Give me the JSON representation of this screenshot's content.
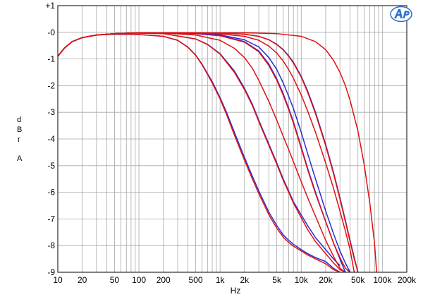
{
  "chart_data": {
    "type": "line",
    "title": "",
    "xlabel": "Hz",
    "ylabel_letters": [
      "d",
      "B",
      "r",
      "A"
    ],
    "x_scale": "log",
    "xlim": [
      10,
      200000
    ],
    "ylim": [
      -9,
      1
    ],
    "grid": true,
    "x_ticks": [
      {
        "value": 10,
        "label": "10"
      },
      {
        "value": 20,
        "label": "20"
      },
      {
        "value": 50,
        "label": "50"
      },
      {
        "value": 100,
        "label": "100"
      },
      {
        "value": 200,
        "label": "200"
      },
      {
        "value": 500,
        "label": "500"
      },
      {
        "value": 1000,
        "label": "1k"
      },
      {
        "value": 2000,
        "label": "2k"
      },
      {
        "value": 5000,
        "label": "5k"
      },
      {
        "value": 10000,
        "label": "10k"
      },
      {
        "value": 20000,
        "label": "20k"
      },
      {
        "value": 50000,
        "label": "50k"
      },
      {
        "value": 100000,
        "label": "100k"
      },
      {
        "value": 200000,
        "label": "200k"
      }
    ],
    "y_ticks": [
      {
        "value": 1,
        "label": "+1"
      },
      {
        "value": 0,
        "label": "-0"
      },
      {
        "value": -1,
        "label": "-1"
      },
      {
        "value": -2,
        "label": "-2"
      },
      {
        "value": -3,
        "label": "-3"
      },
      {
        "value": -4,
        "label": "-4"
      },
      {
        "value": -5,
        "label": "-5"
      },
      {
        "value": -6,
        "label": "-6"
      },
      {
        "value": -7,
        "label": "-7"
      },
      {
        "value": -8,
        "label": "-8"
      },
      {
        "value": -9,
        "label": "-9"
      }
    ],
    "colors": {
      "red": "#e01010",
      "blue": "#2a2ad0"
    },
    "series": [
      {
        "color": "blue",
        "x": [
          10,
          12,
          15,
          20,
          30,
          50,
          100,
          200,
          300,
          400,
          500,
          600,
          700,
          800,
          1000,
          1200,
          1500,
          2000,
          2500,
          3000,
          4000,
          5000,
          6000,
          7000,
          8000,
          10000,
          12000,
          15000,
          20000,
          25000,
          30000
        ],
        "y": [
          -0.9,
          -0.6,
          -0.35,
          -0.2,
          -0.1,
          -0.07,
          -0.08,
          -0.15,
          -0.3,
          -0.55,
          -0.85,
          -1.2,
          -1.55,
          -1.85,
          -2.45,
          -3.0,
          -3.75,
          -4.7,
          -5.4,
          -5.95,
          -6.75,
          -7.25,
          -7.6,
          -7.8,
          -7.95,
          -8.15,
          -8.3,
          -8.45,
          -8.6,
          -8.85,
          -9.0
        ]
      },
      {
        "color": "red",
        "x": [
          10,
          12,
          15,
          20,
          30,
          50,
          100,
          200,
          300,
          400,
          500,
          600,
          700,
          800,
          1000,
          1200,
          1500,
          2000,
          2500,
          3000,
          4000,
          5000,
          6000,
          7000,
          8000,
          10000,
          12000,
          15000,
          20000,
          25000,
          30000
        ],
        "y": [
          -0.9,
          -0.6,
          -0.35,
          -0.2,
          -0.1,
          -0.07,
          -0.08,
          -0.15,
          -0.3,
          -0.56,
          -0.86,
          -1.22,
          -1.58,
          -1.9,
          -2.5,
          -3.08,
          -3.85,
          -4.8,
          -5.5,
          -6.05,
          -6.85,
          -7.35,
          -7.68,
          -7.88,
          -8.02,
          -8.2,
          -8.35,
          -8.5,
          -8.68,
          -8.9,
          -9.0
        ]
      },
      {
        "color": "blue",
        "x": [
          10,
          12,
          15,
          20,
          30,
          50,
          100,
          200,
          500,
          700,
          1000,
          1500,
          2000,
          2500,
          3000,
          4000,
          5000,
          6000,
          7000,
          8000,
          10000,
          12000,
          15000,
          20000,
          25000,
          30000
        ],
        "y": [
          -0.9,
          -0.6,
          -0.35,
          -0.2,
          -0.1,
          -0.05,
          -0.03,
          -0.05,
          -0.25,
          -0.45,
          -0.8,
          -1.45,
          -2.1,
          -2.7,
          -3.3,
          -4.2,
          -4.9,
          -5.5,
          -5.95,
          -6.35,
          -6.85,
          -7.25,
          -7.7,
          -8.15,
          -8.5,
          -8.75
        ]
      },
      {
        "color": "red",
        "x": [
          10,
          12,
          15,
          20,
          30,
          50,
          100,
          200,
          500,
          700,
          1000,
          1500,
          2000,
          2500,
          3000,
          4000,
          5000,
          6000,
          7000,
          8000,
          10000,
          12000,
          15000,
          20000,
          25000,
          30000,
          35000
        ],
        "y": [
          -0.9,
          -0.6,
          -0.35,
          -0.2,
          -0.1,
          -0.05,
          -0.03,
          -0.05,
          -0.25,
          -0.46,
          -0.82,
          -1.5,
          -2.15,
          -2.75,
          -3.35,
          -4.25,
          -4.95,
          -5.55,
          -6.0,
          -6.4,
          -6.95,
          -7.4,
          -7.85,
          -8.3,
          -8.65,
          -8.9,
          -9.0
        ]
      },
      {
        "color": "red",
        "x": [
          10,
          12,
          15,
          20,
          30,
          50,
          100,
          200,
          500,
          1000,
          1500,
          2000,
          2500,
          3000,
          4000,
          5000,
          6000,
          7000,
          8000,
          10000,
          12000,
          15000,
          20000,
          25000,
          30000,
          35000
        ],
        "y": [
          -0.9,
          -0.6,
          -0.35,
          -0.2,
          -0.1,
          -0.05,
          -0.02,
          -0.03,
          -0.1,
          -0.3,
          -0.6,
          -0.95,
          -1.35,
          -1.8,
          -2.6,
          -3.3,
          -3.9,
          -4.4,
          -4.85,
          -5.6,
          -6.2,
          -6.9,
          -7.8,
          -8.4,
          -8.85,
          -9.0
        ]
      },
      {
        "color": "blue",
        "x": [
          10,
          12,
          15,
          20,
          30,
          50,
          100,
          200,
          500,
          1000,
          2000,
          3000,
          4000,
          5000,
          6000,
          7000,
          8000,
          10000,
          12000,
          15000,
          20000,
          25000,
          30000,
          35000
        ],
        "y": [
          -0.9,
          -0.6,
          -0.35,
          -0.2,
          -0.1,
          -0.05,
          -0.02,
          -0.02,
          -0.05,
          -0.12,
          -0.35,
          -0.7,
          -1.2,
          -1.75,
          -2.3,
          -2.85,
          -3.35,
          -4.3,
          -5.1,
          -6.0,
          -7.1,
          -7.9,
          -8.5,
          -9.0
        ]
      },
      {
        "color": "red",
        "x": [
          10,
          12,
          15,
          20,
          30,
          50,
          100,
          200,
          500,
          1000,
          2000,
          3000,
          4000,
          5000,
          6000,
          7000,
          8000,
          10000,
          12000,
          15000,
          20000,
          25000,
          30000,
          35000,
          40000
        ],
        "y": [
          -0.9,
          -0.6,
          -0.35,
          -0.2,
          -0.1,
          -0.05,
          -0.02,
          -0.02,
          -0.05,
          -0.13,
          -0.37,
          -0.73,
          -1.25,
          -1.8,
          -2.36,
          -2.9,
          -3.4,
          -4.35,
          -5.15,
          -6.05,
          -7.1,
          -7.9,
          -8.45,
          -8.85,
          -9.0
        ]
      },
      {
        "color": "blue",
        "x": [
          10,
          12,
          15,
          20,
          30,
          50,
          100,
          200,
          500,
          1000,
          2000,
          3000,
          4000,
          5000,
          6000,
          7000,
          8000,
          10000,
          12000,
          15000,
          20000,
          25000,
          30000,
          35000,
          40000
        ],
        "y": [
          -0.9,
          -0.6,
          -0.35,
          -0.2,
          -0.1,
          -0.05,
          -0.02,
          -0.02,
          -0.04,
          -0.1,
          -0.28,
          -0.55,
          -0.95,
          -1.4,
          -1.9,
          -2.4,
          -2.85,
          -3.75,
          -4.55,
          -5.5,
          -6.7,
          -7.55,
          -8.2,
          -8.65,
          -9.0
        ]
      },
      {
        "color": "red",
        "x": [
          10,
          12,
          15,
          20,
          30,
          50,
          100,
          200,
          500,
          1000,
          2000,
          3000,
          4000,
          5000,
          6000,
          7000,
          8000,
          10000,
          12000,
          15000,
          20000,
          25000,
          30000,
          35000,
          40000,
          45000
        ],
        "y": [
          -0.9,
          -0.6,
          -0.35,
          -0.2,
          -0.1,
          -0.05,
          -0.02,
          -0.02,
          -0.03,
          -0.06,
          -0.15,
          -0.3,
          -0.52,
          -0.78,
          -1.08,
          -1.4,
          -1.72,
          -2.35,
          -2.95,
          -3.75,
          -4.9,
          -5.85,
          -6.7,
          -7.45,
          -8.15,
          -9.0
        ]
      },
      {
        "color": "blue",
        "x": [
          10,
          12,
          15,
          20,
          30,
          50,
          100,
          200,
          500,
          1000,
          2000,
          3000,
          4000,
          5000,
          6000,
          7000,
          8000,
          10000,
          12000,
          15000,
          20000,
          25000,
          30000,
          35000,
          40000,
          45000,
          50000
        ],
        "y": [
          -0.9,
          -0.6,
          -0.35,
          -0.2,
          -0.1,
          -0.05,
          -0.02,
          -0.02,
          -0.02,
          -0.03,
          -0.07,
          -0.15,
          -0.28,
          -0.45,
          -0.65,
          -0.88,
          -1.12,
          -1.65,
          -2.2,
          -3.0,
          -4.2,
          -5.25,
          -6.2,
          -7.05,
          -7.8,
          -8.45,
          -9.0
        ]
      },
      {
        "color": "red",
        "x": [
          10,
          12,
          15,
          20,
          30,
          50,
          100,
          200,
          500,
          1000,
          2000,
          3000,
          4000,
          5000,
          6000,
          7000,
          8000,
          10000,
          12000,
          15000,
          20000,
          25000,
          30000,
          35000,
          40000,
          45000,
          50000
        ],
        "y": [
          -0.9,
          -0.6,
          -0.35,
          -0.2,
          -0.1,
          -0.05,
          -0.02,
          -0.02,
          -0.02,
          -0.03,
          -0.07,
          -0.15,
          -0.28,
          -0.46,
          -0.66,
          -0.9,
          -1.15,
          -1.68,
          -2.25,
          -3.05,
          -4.25,
          -5.3,
          -6.25,
          -7.1,
          -7.85,
          -8.5,
          -9.0
        ]
      },
      {
        "color": "red",
        "x": [
          10,
          12,
          15,
          20,
          30,
          50,
          100,
          200,
          500,
          1000,
          2000,
          5000,
          10000,
          15000,
          20000,
          25000,
          30000,
          35000,
          40000,
          50000,
          60000,
          70000,
          80000,
          85000
        ],
        "y": [
          -0.9,
          -0.6,
          -0.35,
          -0.2,
          -0.1,
          -0.05,
          -0.02,
          -0.02,
          -0.02,
          -0.02,
          -0.02,
          -0.05,
          -0.15,
          -0.35,
          -0.65,
          -1.05,
          -1.5,
          -2.0,
          -2.55,
          -3.7,
          -5.0,
          -6.4,
          -7.9,
          -9.0
        ]
      }
    ]
  }
}
